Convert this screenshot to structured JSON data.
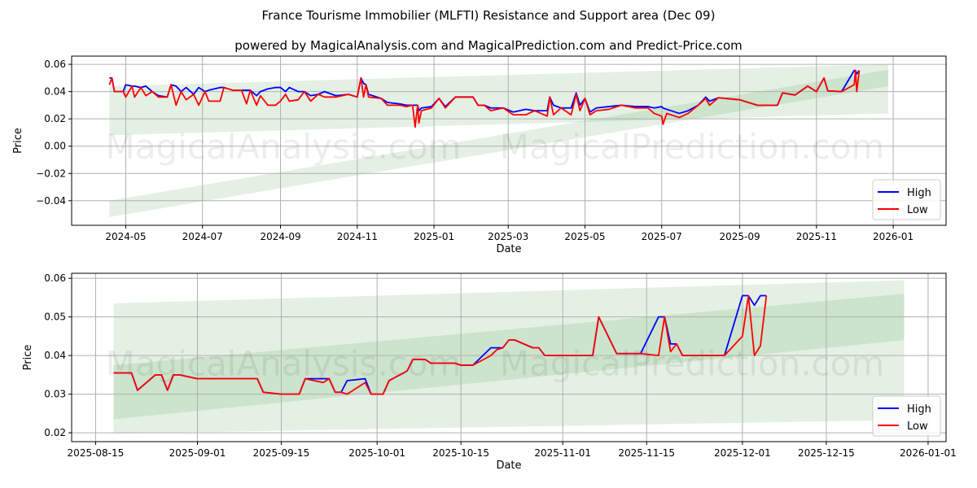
{
  "title": "France Tourisme Immobilier (MLFTI) Resistance and Support area (Dec 09)",
  "subtitle": "powered by MagicalAnalysis.com and MagicalPrediction.com and Predict-Price.com",
  "watermarks": [
    "MagicalAnalysis.com",
    "MagicalPrediction.com"
  ],
  "colors": {
    "high": "#0000ff",
    "low": "#ff0000",
    "band": "#2e8b2e"
  },
  "chart_data": [
    {
      "type": "line",
      "xlabel": "Date",
      "ylabel": "Price",
      "legend": [
        "High",
        "Low"
      ],
      "legend_position": "bottom-right",
      "grid": true,
      "xlim": [
        "2024-03-19",
        "2026-02-12"
      ],
      "ylim": [
        -0.058,
        0.066
      ],
      "xticks": [
        [
          "2024-05-01",
          "2024-05"
        ],
        [
          "2024-07-01",
          "2024-07"
        ],
        [
          "2024-09-01",
          "2024-09"
        ],
        [
          "2024-11-01",
          "2024-11"
        ],
        [
          "2025-01-01",
          "2025-01"
        ],
        [
          "2025-03-01",
          "2025-03"
        ],
        [
          "2025-05-01",
          "2025-05"
        ],
        [
          "2025-07-01",
          "2025-07"
        ],
        [
          "2025-09-01",
          "2025-09"
        ],
        [
          "2025-11-01",
          "2025-11"
        ],
        [
          "2026-01-01",
          "2026-01"
        ]
      ],
      "yticks": [
        [
          0.06,
          "0.06"
        ],
        [
          0.04,
          "0.04"
        ],
        [
          0.02,
          "0.02"
        ],
        [
          0,
          "0.00"
        ],
        [
          -0.02,
          "−0.02"
        ],
        [
          -0.04,
          "−0.04"
        ]
      ],
      "bands": [
        {
          "x": [
            "2024-04-18",
            "2025-12-28"
          ],
          "upper": [
            0.044,
            0.06
          ],
          "lower": [
            0.008,
            0.024
          ]
        },
        {
          "x": [
            "2024-04-18",
            "2025-12-28"
          ],
          "upper": [
            -0.04,
            0.056
          ],
          "lower": [
            -0.052,
            0.044
          ]
        }
      ],
      "x": [
        "2024-04-18",
        "2024-04-20",
        "2024-04-22",
        "2024-04-29",
        "2024-05-01",
        "2024-05-06",
        "2024-05-08",
        "2024-05-13",
        "2024-05-17",
        "2024-05-22",
        "2024-05-27",
        "2024-06-03",
        "2024-06-06",
        "2024-06-10",
        "2024-06-14",
        "2024-06-18",
        "2024-06-24",
        "2024-06-28",
        "2024-07-03",
        "2024-07-06",
        "2024-07-15",
        "2024-07-18",
        "2024-07-25",
        "2024-08-01",
        "2024-08-05",
        "2024-08-08",
        "2024-08-13",
        "2024-08-16",
        "2024-08-22",
        "2024-08-28",
        "2024-09-01",
        "2024-09-05",
        "2024-09-08",
        "2024-09-15",
        "2024-09-20",
        "2024-09-25",
        "2024-10-01",
        "2024-10-06",
        "2024-10-15",
        "2024-10-25",
        "2024-11-01",
        "2024-11-04",
        "2024-11-06",
        "2024-11-08",
        "2024-11-10",
        "2024-11-20",
        "2024-11-25",
        "2024-12-05",
        "2024-12-10",
        "2024-12-15",
        "2024-12-17",
        "2024-12-19",
        "2024-12-20",
        "2024-12-22",
        "2024-12-30",
        "2025-01-05",
        "2025-01-10",
        "2025-01-18",
        "2025-02-01",
        "2025-02-05",
        "2025-02-10",
        "2025-02-15",
        "2025-02-25",
        "2025-03-05",
        "2025-03-15",
        "2025-03-22",
        "2025-04-01",
        "2025-04-03",
        "2025-04-06",
        "2025-04-12",
        "2025-04-20",
        "2025-04-24",
        "2025-04-27",
        "2025-05-01",
        "2025-05-05",
        "2025-05-10",
        "2025-05-20",
        "2025-05-30",
        "2025-06-10",
        "2025-06-20",
        "2025-06-25",
        "2025-07-01",
        "2025-07-02",
        "2025-07-05",
        "2025-07-15",
        "2025-07-22",
        "2025-07-30",
        "2025-08-05",
        "2025-08-08",
        "2025-08-15",
        "2025-09-01",
        "2025-09-15",
        "2025-10-01",
        "2025-10-05",
        "2025-10-15",
        "2025-10-25",
        "2025-11-01",
        "2025-11-07",
        "2025-11-10",
        "2025-11-21",
        "2025-12-01",
        "2025-12-02",
        "2025-12-03",
        "2025-12-05"
      ],
      "series": [
        {
          "name": "High",
          "values": [
            0.05,
            0.05,
            0.04,
            0.04,
            0.045,
            0.044,
            0.044,
            0.043,
            0.044,
            0.04,
            0.037,
            0.036,
            0.045,
            0.044,
            0.04,
            0.043,
            0.038,
            0.043,
            0.04,
            0.041,
            0.043,
            0.043,
            0.041,
            0.041,
            0.041,
            0.041,
            0.037,
            0.04,
            0.042,
            0.043,
            0.043,
            0.04,
            0.043,
            0.04,
            0.04,
            0.037,
            0.038,
            0.04,
            0.037,
            0.038,
            0.036,
            0.05,
            0.046,
            0.045,
            0.038,
            0.035,
            0.032,
            0.031,
            0.03,
            0.03,
            0.03,
            0.03,
            0.026,
            0.028,
            0.029,
            0.035,
            0.029,
            0.036,
            0.036,
            0.03,
            0.03,
            0.028,
            0.028,
            0.025,
            0.027,
            0.026,
            0.026,
            0.036,
            0.03,
            0.028,
            0.028,
            0.039,
            0.03,
            0.035,
            0.025,
            0.028,
            0.029,
            0.03,
            0.029,
            0.029,
            0.028,
            0.029,
            0.028,
            0.027,
            0.024,
            0.026,
            0.03,
            0.036,
            0.033,
            0.0355,
            0.034,
            0.03,
            0.03,
            0.039,
            0.0375,
            0.044,
            0.04,
            0.05,
            0.0405,
            0.04,
            0.0555,
            0.0555,
            0.053,
            0.0555
          ]
        },
        {
          "name": "Low",
          "values": [
            0.045,
            0.05,
            0.04,
            0.04,
            0.036,
            0.044,
            0.036,
            0.043,
            0.037,
            0.04,
            0.036,
            0.036,
            0.045,
            0.03,
            0.04,
            0.034,
            0.038,
            0.03,
            0.04,
            0.033,
            0.033,
            0.043,
            0.041,
            0.041,
            0.031,
            0.041,
            0.03,
            0.037,
            0.03,
            0.03,
            0.033,
            0.038,
            0.033,
            0.034,
            0.04,
            0.033,
            0.038,
            0.036,
            0.036,
            0.038,
            0.036,
            0.05,
            0.036,
            0.045,
            0.036,
            0.035,
            0.03,
            0.03,
            0.029,
            0.03,
            0.014,
            0.03,
            0.017,
            0.026,
            0.028,
            0.035,
            0.028,
            0.036,
            0.036,
            0.03,
            0.03,
            0.026,
            0.028,
            0.023,
            0.023,
            0.026,
            0.022,
            0.036,
            0.023,
            0.028,
            0.023,
            0.038,
            0.026,
            0.035,
            0.023,
            0.026,
            0.027,
            0.03,
            0.028,
            0.028,
            0.024,
            0.022,
            0.016,
            0.024,
            0.021,
            0.024,
            0.03,
            0.035,
            0.03,
            0.0355,
            0.034,
            0.03,
            0.03,
            0.039,
            0.0375,
            0.044,
            0.04,
            0.05,
            0.0405,
            0.04,
            0.045,
            0.0555,
            0.04,
            0.0555
          ]
        }
      ]
    },
    {
      "type": "line",
      "xlabel": "Date",
      "ylabel": "Price",
      "legend": [
        "High",
        "Low"
      ],
      "legend_position": "bottom-right",
      "grid": true,
      "xlim": [
        "2025-08-11",
        "2026-01-04"
      ],
      "ylim": [
        0.0177,
        0.0613
      ],
      "xticks": [
        [
          "2025-08-15",
          "2025-08-15"
        ],
        [
          "2025-09-01",
          "2025-09-01"
        ],
        [
          "2025-09-15",
          "2025-09-15"
        ],
        [
          "2025-10-01",
          "2025-10-01"
        ],
        [
          "2025-10-15",
          "2025-10-15"
        ],
        [
          "2025-11-01",
          "2025-11-01"
        ],
        [
          "2025-11-15",
          "2025-11-15"
        ],
        [
          "2025-12-01",
          "2025-12-01"
        ],
        [
          "2025-12-15",
          "2025-12-15"
        ],
        [
          "2026-01-01",
          "2026-01-01"
        ]
      ],
      "yticks": [
        [
          0.06,
          "0.06"
        ],
        [
          0.05,
          "0.05"
        ],
        [
          0.04,
          "0.04"
        ],
        [
          0.03,
          "0.03"
        ],
        [
          0.02,
          "0.02"
        ]
      ],
      "bands": [
        {
          "x": [
            "2025-08-18",
            "2025-12-28"
          ],
          "upper": [
            0.0535,
            0.0595
          ],
          "lower": [
            0.0198,
            0.0233
          ]
        },
        {
          "x": [
            "2025-08-18",
            "2025-12-28"
          ],
          "upper": [
            0.0375,
            0.056
          ],
          "lower": [
            0.0235,
            0.044
          ]
        }
      ],
      "x": [
        "2025-08-18",
        "2025-08-21",
        "2025-08-22",
        "2025-08-25",
        "2025-08-26",
        "2025-08-27",
        "2025-08-28",
        "2025-08-29",
        "2025-09-01",
        "2025-09-11",
        "2025-09-12",
        "2025-09-15",
        "2025-09-18",
        "2025-09-19",
        "2025-09-22",
        "2025-09-23",
        "2025-09-24",
        "2025-09-25",
        "2025-09-26",
        "2025-09-29",
        "2025-09-30",
        "2025-10-02",
        "2025-10-03",
        "2025-10-06",
        "2025-10-07",
        "2025-10-09",
        "2025-10-10",
        "2025-10-14",
        "2025-10-15",
        "2025-10-17",
        "2025-10-20",
        "2025-10-21",
        "2025-10-22",
        "2025-10-23",
        "2025-10-24",
        "2025-10-27",
        "2025-10-28",
        "2025-10-29",
        "2025-11-06",
        "2025-11-07",
        "2025-11-10",
        "2025-11-14",
        "2025-11-17",
        "2025-11-18",
        "2025-11-19",
        "2025-11-20",
        "2025-11-21",
        "2025-11-28",
        "2025-12-01",
        "2025-12-02",
        "2025-12-03",
        "2025-12-04",
        "2025-12-05"
      ],
      "series": [
        {
          "name": "High",
          "values": [
            0.0355,
            0.0355,
            0.031,
            0.035,
            0.035,
            0.031,
            0.035,
            0.035,
            0.034,
            0.034,
            0.0305,
            0.03,
            0.03,
            0.034,
            0.034,
            0.034,
            0.0305,
            0.0305,
            0.0335,
            0.034,
            0.03,
            0.03,
            0.0335,
            0.036,
            0.039,
            0.039,
            0.038,
            0.038,
            0.0375,
            0.0375,
            0.042,
            0.042,
            0.042,
            0.044,
            0.044,
            0.042,
            0.042,
            0.04,
            0.04,
            0.05,
            0.0405,
            0.0405,
            0.05,
            0.05,
            0.043,
            0.043,
            0.04,
            0.04,
            0.0555,
            0.0555,
            0.053,
            0.0555,
            0.0555
          ]
        },
        {
          "name": "Low",
          "values": [
            0.0355,
            0.0355,
            0.031,
            0.035,
            0.035,
            0.031,
            0.035,
            0.035,
            0.034,
            0.034,
            0.0305,
            0.03,
            0.03,
            0.034,
            0.033,
            0.034,
            0.0305,
            0.0305,
            0.03,
            0.033,
            0.03,
            0.03,
            0.0335,
            0.036,
            0.039,
            0.039,
            0.038,
            0.038,
            0.0375,
            0.0375,
            0.04,
            0.0415,
            0.042,
            0.044,
            0.044,
            0.042,
            0.042,
            0.04,
            0.04,
            0.05,
            0.0405,
            0.0405,
            0.04,
            0.05,
            0.041,
            0.043,
            0.04,
            0.04,
            0.045,
            0.0555,
            0.04,
            0.0425,
            0.0555
          ]
        }
      ]
    }
  ]
}
